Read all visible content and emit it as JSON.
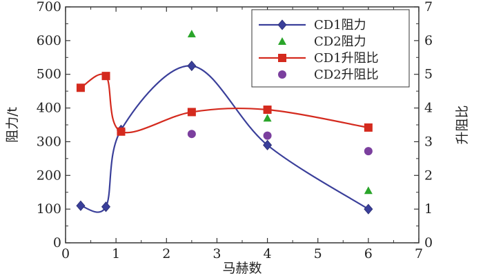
{
  "chart_data": {
    "type": "line",
    "xlabel": "马赫数",
    "ylabel_left": "阻力/t",
    "ylabel_right": "升阻比",
    "xlim": [
      0,
      7
    ],
    "ylim_left": [
      0,
      700
    ],
    "ylim_right": [
      0,
      7
    ],
    "x_ticks": [
      "0",
      "1",
      "2",
      "3",
      "4",
      "5",
      "6",
      "7"
    ],
    "y_left_ticks": [
      "0",
      "100",
      "200",
      "300",
      "400",
      "500",
      "600",
      "700"
    ],
    "y_right_ticks": [
      "0",
      "1",
      "2",
      "3",
      "4",
      "5",
      "6",
      "7"
    ],
    "grid": false,
    "legend_position": "top-right",
    "series": [
      {
        "name": "CD1阻力",
        "axis": "left",
        "marker": "diamond",
        "line": true,
        "color": "#3a3f9a",
        "x": [
          0.3,
          0.8,
          1.1,
          2.5,
          4.0,
          6.0
        ],
        "y": [
          110,
          107,
          335,
          525,
          290,
          100
        ]
      },
      {
        "name": "CD2阻力",
        "axis": "left",
        "marker": "triangle",
        "line": false,
        "color": "#2aa52a",
        "x": [
          2.5,
          4.0,
          6.0
        ],
        "y": [
          620,
          370,
          155
        ]
      },
      {
        "name": "CD1升阻比",
        "axis": "right",
        "marker": "square",
        "line": true,
        "color": "#d42a1e",
        "x": [
          0.3,
          0.8,
          1.1,
          2.5,
          4.0,
          6.0
        ],
        "y": [
          4.6,
          4.95,
          3.3,
          3.88,
          3.95,
          3.42
        ]
      },
      {
        "name": "CD2升阻比",
        "axis": "right",
        "marker": "circle",
        "line": false,
        "color": "#7b3f9e",
        "x": [
          2.5,
          4.0,
          6.0
        ],
        "y": [
          3.23,
          3.18,
          2.72
        ]
      }
    ]
  }
}
